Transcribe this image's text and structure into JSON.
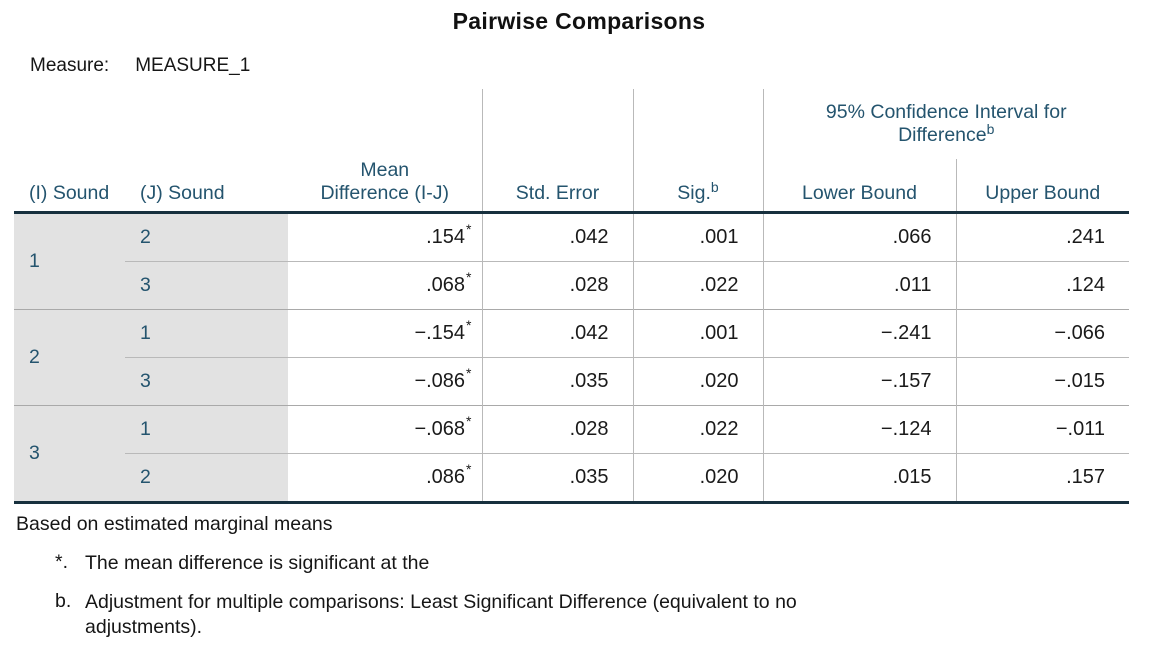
{
  "title": "Pairwise Comparisons",
  "measure": {
    "label": "Measure:",
    "value": "MEASURE_1"
  },
  "colors": {
    "header_text": "#24546E",
    "stub_bg": "#E2E2E2",
    "heavy_border": "#17303E",
    "grid_line": "#B9B9B9",
    "group_line": "#A9A9A9",
    "data_text": "#1A1A1A",
    "title_text": "#111111",
    "page_bg": "#FFFFFF"
  },
  "table": {
    "headers": {
      "i_sound": "(I) Sound",
      "j_sound": "(J) Sound",
      "mean_diff": "Mean Difference (I-J)",
      "std_error": "Std. Error",
      "sig": "Sig.",
      "sig_sup": "b",
      "ci": "95% Confidence Interval for Difference",
      "ci_sup": "b",
      "lower": "Lower Bound",
      "upper": "Upper Bound"
    },
    "rows": [
      {
        "i": "1",
        "j": "2",
        "mean": ".154",
        "marker": "*",
        "se": ".042",
        "sig": ".001",
        "lower": ".066",
        "upper": ".241"
      },
      {
        "j": "3",
        "mean": ".068",
        "marker": "*",
        "se": ".028",
        "sig": ".022",
        "lower": ".011",
        "upper": ".124"
      },
      {
        "i": "2",
        "j": "1",
        "mean": "−.154",
        "marker": "*",
        "se": ".042",
        "sig": ".001",
        "lower": "−.241",
        "upper": "−.066"
      },
      {
        "j": "3",
        "mean": "−.086",
        "marker": "*",
        "se": ".035",
        "sig": ".020",
        "lower": "−.157",
        "upper": "−.015"
      },
      {
        "i": "3",
        "j": "1",
        "mean": "−.068",
        "marker": "*",
        "se": ".028",
        "sig": ".022",
        "lower": "−.124",
        "upper": "−.011"
      },
      {
        "j": "2",
        "mean": ".086",
        "marker": "*",
        "se": ".035",
        "sig": ".020",
        "lower": ".015",
        "upper": ".157"
      }
    ]
  },
  "footnotes": {
    "base": "Based on estimated marginal means",
    "star_marker": "*.",
    "star_text": "The mean difference is significant at the",
    "b_marker": "b.",
    "b_text": "Adjustment for multiple comparisons: Least Significant Difference (equivalent to no adjustments)."
  }
}
